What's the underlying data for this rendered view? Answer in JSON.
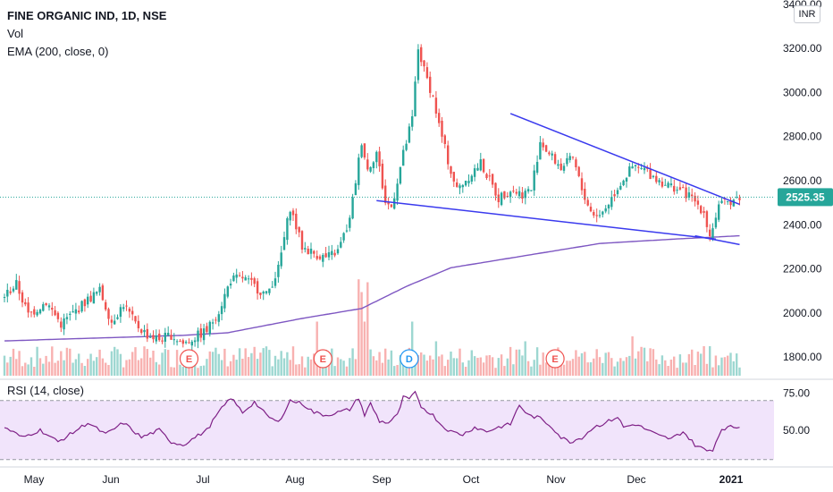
{
  "legend": {
    "title": "FINE ORGANIC IND, 1D, NSE",
    "volume": "Vol",
    "ema": "EMA (200, close, 0)",
    "rsi": "RSI (14, close)",
    "currency": "INR"
  },
  "colors": {
    "up": "#26a69a",
    "down": "#ef5350",
    "ema": "#7e57c2",
    "trendline": "#3a3aee",
    "rsi_line": "#7e1f86",
    "rsi_band": "#f1e4fb",
    "price_line": "#26a69a"
  },
  "chart_data": [
    {
      "type": "candlestick",
      "title": "FINE ORGANIC IND, 1D, NSE",
      "x_axis": {
        "months": [
          "May",
          "Jun",
          "Jul",
          "Aug",
          "Sep",
          "Oct",
          "Nov",
          "Dec",
          "2021"
        ]
      },
      "y_axis": {
        "ticks": [
          1800,
          2000,
          2200,
          2400,
          2600,
          2800,
          3000,
          3200,
          3400
        ],
        "tick_labels": [
          "1800.00",
          "2000.00",
          "2200.00",
          "2400.00",
          "2600.00",
          "2800.00",
          "3000.00",
          "3200.00",
          "3400.00"
        ],
        "range": [
          1715,
          3420
        ]
      },
      "last_price": 2525.35,
      "last_price_label": "2525.35",
      "price_anchors": [
        [
          0,
          2080
        ],
        [
          4,
          2130
        ],
        [
          8,
          1990
        ],
        [
          14,
          2050
        ],
        [
          19,
          1950
        ],
        [
          24,
          2010
        ],
        [
          28,
          2060
        ],
        [
          32,
          2100
        ],
        [
          36,
          1960
        ],
        [
          40,
          2040
        ],
        [
          44,
          1950
        ],
        [
          48,
          1900
        ],
        [
          52,
          1880
        ],
        [
          56,
          1900
        ],
        [
          60,
          1860
        ],
        [
          64,
          1890
        ],
        [
          68,
          1920
        ],
        [
          72,
          2010
        ],
        [
          76,
          2150
        ],
        [
          80,
          2160
        ],
        [
          84,
          2120
        ],
        [
          88,
          2080
        ],
        [
          92,
          2200
        ],
        [
          96,
          2480
        ],
        [
          100,
          2300
        ],
        [
          104,
          2270
        ],
        [
          108,
          2250
        ],
        [
          112,
          2280
        ],
        [
          116,
          2420
        ],
        [
          120,
          2780
        ],
        [
          122,
          2650
        ],
        [
          125,
          2730
        ],
        [
          128,
          2500
        ],
        [
          130,
          2480
        ],
        [
          134,
          2720
        ],
        [
          137,
          2880
        ],
        [
          139,
          3200
        ],
        [
          141,
          3100
        ],
        [
          144,
          2980
        ],
        [
          146,
          2850
        ],
        [
          150,
          2640
        ],
        [
          152,
          2560
        ],
        [
          156,
          2620
        ],
        [
          160,
          2680
        ],
        [
          163,
          2600
        ],
        [
          166,
          2520
        ],
        [
          170,
          2560
        ],
        [
          174,
          2540
        ],
        [
          177,
          2560
        ],
        [
          180,
          2780
        ],
        [
          183,
          2720
        ],
        [
          187,
          2660
        ],
        [
          191,
          2700
        ],
        [
          194,
          2560
        ],
        [
          197,
          2460
        ],
        [
          200,
          2440
        ],
        [
          203,
          2500
        ],
        [
          207,
          2590
        ],
        [
          211,
          2660
        ],
        [
          215,
          2650
        ],
        [
          219,
          2610
        ],
        [
          223,
          2580
        ],
        [
          227,
          2560
        ],
        [
          231,
          2520
        ],
        [
          235,
          2460
        ],
        [
          237,
          2350
        ],
        [
          240,
          2480
        ],
        [
          244,
          2510
        ],
        [
          247,
          2525
        ]
      ],
      "volume_peaks": [
        [
          105,
          0.55
        ],
        [
          119,
          0.98
        ],
        [
          120,
          0.85
        ],
        [
          121,
          0.55
        ],
        [
          122,
          0.95
        ],
        [
          137,
          0.55
        ],
        [
          145,
          0.35
        ],
        [
          175,
          0.35
        ],
        [
          211,
          0.4
        ],
        [
          235,
          0.3
        ]
      ],
      "events": [
        {
          "label": "E",
          "bar": 62,
          "kind": "earnings"
        },
        {
          "label": "E",
          "bar": 107,
          "kind": "earnings"
        },
        {
          "label": "D",
          "bar": 136,
          "kind": "dividend"
        },
        {
          "label": "E",
          "bar": 185,
          "kind": "earnings"
        }
      ],
      "ema_200": [
        [
          0,
          1873
        ],
        [
          60,
          1898
        ],
        [
          75,
          1910
        ],
        [
          100,
          1975
        ],
        [
          120,
          2020
        ],
        [
          135,
          2120
        ],
        [
          150,
          2205
        ],
        [
          175,
          2260
        ],
        [
          200,
          2315
        ],
        [
          225,
          2335
        ],
        [
          247,
          2350
        ]
      ],
      "trendlines": [
        {
          "name": "upper",
          "from": [
            170,
            2905
          ],
          "to": [
            247,
            2493
          ]
        },
        {
          "name": "lower",
          "from": [
            125,
            2510
          ],
          "to": [
            239,
            2335
          ]
        },
        {
          "name": "lower-extension",
          "from": [
            232,
            2350
          ],
          "to": [
            247,
            2310
          ]
        }
      ]
    },
    {
      "type": "line",
      "title": "RSI (14, close)",
      "y_axis": {
        "ticks": [
          50,
          75
        ],
        "tick_labels": [
          "50.00",
          "75.00"
        ],
        "range": [
          25,
          82
        ],
        "band": [
          30,
          70
        ]
      },
      "anchors": [
        [
          0,
          52
        ],
        [
          6,
          45
        ],
        [
          12,
          50
        ],
        [
          18,
          42
        ],
        [
          22,
          47
        ],
        [
          28,
          55
        ],
        [
          34,
          47
        ],
        [
          40,
          55
        ],
        [
          46,
          45
        ],
        [
          52,
          50
        ],
        [
          56,
          42
        ],
        [
          60,
          40
        ],
        [
          64,
          45
        ],
        [
          68,
          50
        ],
        [
          72,
          62
        ],
        [
          76,
          72
        ],
        [
          80,
          62
        ],
        [
          84,
          69
        ],
        [
          88,
          60
        ],
        [
          92,
          55
        ],
        [
          96,
          70
        ],
        [
          100,
          68
        ],
        [
          104,
          62
        ],
        [
          108,
          60
        ],
        [
          112,
          62
        ],
        [
          116,
          64
        ],
        [
          119,
          72
        ],
        [
          121,
          60
        ],
        [
          123,
          68
        ],
        [
          126,
          56
        ],
        [
          129,
          55
        ],
        [
          132,
          60
        ],
        [
          134,
          72
        ],
        [
          136,
          71
        ],
        [
          138,
          75
        ],
        [
          140,
          66
        ],
        [
          144,
          60
        ],
        [
          147,
          53
        ],
        [
          150,
          49
        ],
        [
          154,
          47
        ],
        [
          158,
          52
        ],
        [
          162,
          49
        ],
        [
          166,
          52
        ],
        [
          170,
          54
        ],
        [
          173,
          67
        ],
        [
          176,
          60
        ],
        [
          180,
          58
        ],
        [
          184,
          52
        ],
        [
          187,
          45
        ],
        [
          190,
          42
        ],
        [
          194,
          45
        ],
        [
          198,
          52
        ],
        [
          202,
          55
        ],
        [
          206,
          59
        ],
        [
          208,
          52
        ],
        [
          212,
          54
        ],
        [
          216,
          50
        ],
        [
          220,
          46
        ],
        [
          224,
          44
        ],
        [
          228,
          49
        ],
        [
          232,
          40
        ],
        [
          236,
          36
        ],
        [
          238,
          37
        ],
        [
          241,
          51
        ],
        [
          244,
          52
        ],
        [
          247,
          52
        ]
      ]
    }
  ]
}
